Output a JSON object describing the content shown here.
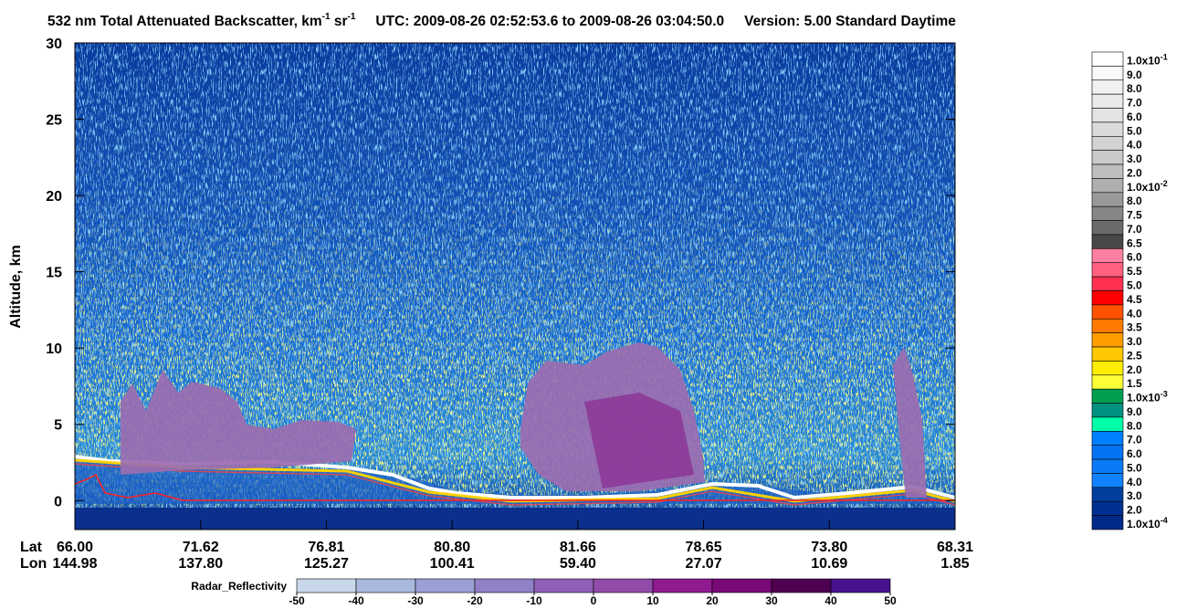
{
  "chart_data": {
    "type": "curtain",
    "title_segments": [
      "532 nm Total Attenuated Backscatter, km",
      "-1",
      " sr",
      "-1"
    ],
    "utc": "UTC:  2009-08-26 02:52:53.6  to  2009-08-26 03:04:50.0",
    "version": "Version: 5.00  Standard  Daytime",
    "y_label": "Altitude, km",
    "ylim": [
      -1.9,
      30
    ],
    "yticks": [
      0,
      5,
      10,
      15,
      20,
      25,
      30
    ],
    "lat_header": "Lat",
    "lon_header": "Lon",
    "lat": [
      "66.00",
      "71.62",
      "76.81",
      "80.80",
      "81.66",
      "78.65",
      "73.80",
      "68.31"
    ],
    "lon": [
      "144.98",
      "137.80",
      "125.27",
      "100.41",
      "59.40",
      "27.07",
      "10.69",
      "1.85"
    ],
    "backscatter_colorbar": [
      {
        "label": "1.0x10",
        "exp": "-1",
        "color": "#ffffff"
      },
      {
        "label": "9.0",
        "color": "#f8f8f8"
      },
      {
        "label": "8.0",
        "color": "#f1f1f1"
      },
      {
        "label": "7.0",
        "color": "#eaeaea"
      },
      {
        "label": "6.0",
        "color": "#e3e3e3"
      },
      {
        "label": "5.0",
        "color": "#dbdbdb"
      },
      {
        "label": "4.0",
        "color": "#d3d3d3"
      },
      {
        "label": "3.0",
        "color": "#cacaca"
      },
      {
        "label": "2.0",
        "color": "#bebebe"
      },
      {
        "label": "1.0x10",
        "exp": "-2",
        "color": "#afafaf"
      },
      {
        "label": "8.0",
        "color": "#999999"
      },
      {
        "label": "7.5",
        "color": "#868686"
      },
      {
        "label": "7.0",
        "color": "#6a6a6a"
      },
      {
        "label": "6.5",
        "color": "#474747"
      },
      {
        "label": "6.0",
        "color": "#ff80a0"
      },
      {
        "label": "5.5",
        "color": "#ff6080"
      },
      {
        "label": "5.0",
        "color": "#ff3050"
      },
      {
        "label": "4.5",
        "color": "#ff0000"
      },
      {
        "label": "4.0",
        "color": "#ff5200"
      },
      {
        "label": "3.5",
        "color": "#ff7a00"
      },
      {
        "label": "3.0",
        "color": "#ff9c00"
      },
      {
        "label": "2.5",
        "color": "#ffc800"
      },
      {
        "label": "2.0",
        "color": "#ffee00"
      },
      {
        "label": "1.5",
        "color": "#ffff38"
      },
      {
        "label": "1.0x10",
        "exp": "-3",
        "color": "#00a050"
      },
      {
        "label": "9.0",
        "color": "#009080"
      },
      {
        "label": "8.0",
        "color": "#00ffa8"
      },
      {
        "label": "7.0",
        "color": "#0080ff"
      },
      {
        "label": "6.0",
        "color": "#0474f2"
      },
      {
        "label": "5.0",
        "color": "#0a7af6"
      },
      {
        "label": "4.0",
        "color": "#1082ff"
      },
      {
        "label": "3.0",
        "color": "#003e9e"
      },
      {
        "label": "2.0",
        "color": "#003092"
      },
      {
        "label": "1.0x10",
        "exp": "-4",
        "color": "#002a8a"
      }
    ],
    "radar_label": "Radar_Reflectivity",
    "radar_lim": [
      -50,
      50
    ],
    "radar_ticks": [
      -50,
      -40,
      -30,
      -20,
      -10,
      0,
      10,
      20,
      30,
      40,
      50
    ],
    "radar_colors": [
      "#c8d8ea",
      "#a9b9de",
      "#9aa0d4",
      "#9080c8",
      "#9060b8",
      "#904ca8",
      "#901a90",
      "#780a78",
      "#500050",
      "#48128e"
    ]
  }
}
